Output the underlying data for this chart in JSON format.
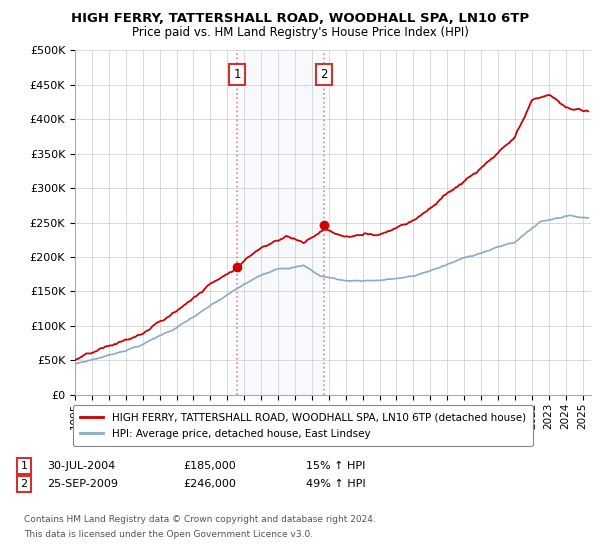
{
  "title": "HIGH FERRY, TATTERSHALL ROAD, WOODHALL SPA, LN10 6TP",
  "subtitle": "Price paid vs. HM Land Registry's House Price Index (HPI)",
  "legend_line1": "HIGH FERRY, TATTERSHALL ROAD, WOODHALL SPA, LN10 6TP (detached house)",
  "legend_line2": "HPI: Average price, detached house, East Lindsey",
  "annotation1_label": "1",
  "annotation1_date": "30-JUL-2004",
  "annotation1_price": "£185,000",
  "annotation1_hpi": "15% ↑ HPI",
  "annotation2_label": "2",
  "annotation2_date": "25-SEP-2009",
  "annotation2_price": "£246,000",
  "annotation2_hpi": "49% ↑ HPI",
  "footer1": "Contains HM Land Registry data © Crown copyright and database right 2024.",
  "footer2": "This data is licensed under the Open Government Licence v3.0.",
  "sale1_year": 2004.58,
  "sale1_price": 185000,
  "sale2_year": 2009.73,
  "sale2_price": 246000,
  "red_color": "#cc0000",
  "blue_color": "#88aacc",
  "shade_color": "#dde8f5",
  "vline_color": "#dd8888",
  "marker_box_color": "#cc3333",
  "ylim_max": 500000,
  "ylim_min": 0,
  "xlim_min": 1995,
  "xlim_max": 2025.5
}
